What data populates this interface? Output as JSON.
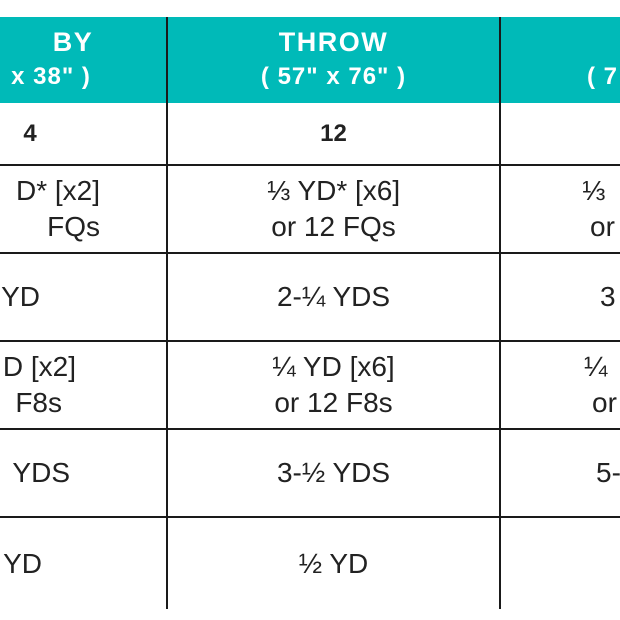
{
  "columns": [
    {
      "title": "BY",
      "size": "x 38\" )"
    },
    {
      "title": "THROW",
      "size": "( 57\" x 76\" )"
    },
    {
      "title": "",
      "size": "( 7"
    }
  ],
  "rows": [
    {
      "cells": [
        [
          "4"
        ],
        [
          "12"
        ],
        [
          ""
        ]
      ]
    },
    {
      "cells": [
        [
          "D* [x2]",
          "FQs"
        ],
        [
          "⅓ YD* [x6]",
          "or 12 FQs"
        ],
        [
          "⅓",
          "or"
        ]
      ]
    },
    {
      "cells": [
        [
          "YD"
        ],
        [
          "2-¼ YDS"
        ],
        [
          "3"
        ]
      ]
    },
    {
      "cells": [
        [
          "D [x2]",
          "F8s"
        ],
        [
          "¼ YD [x6]",
          "or 12 F8s"
        ],
        [
          "¼",
          "or"
        ]
      ]
    },
    {
      "cells": [
        [
          "YDS"
        ],
        [
          "3-½ YDS"
        ],
        [
          "5-"
        ]
      ]
    },
    {
      "cells": [
        [
          "YD"
        ],
        [
          "½ YD"
        ],
        [
          ""
        ]
      ]
    }
  ],
  "colors": {
    "header_bg": "#00bab8",
    "header_text": "#ffffff",
    "body_text": "#222222",
    "rule": "#1a1a1a"
  }
}
